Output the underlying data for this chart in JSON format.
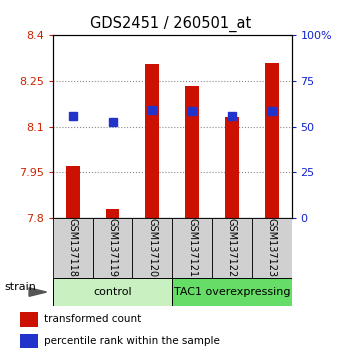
{
  "title": "GDS2451 / 260501_at",
  "samples": [
    "GSM137118",
    "GSM137119",
    "GSM137120",
    "GSM137121",
    "GSM137122",
    "GSM137123"
  ],
  "red_values": [
    7.97,
    7.83,
    8.305,
    8.235,
    8.13,
    8.31
  ],
  "blue_values": [
    8.135,
    8.115,
    8.155,
    8.15,
    8.135,
    8.15
  ],
  "red_base": 7.8,
  "ylim_left": [
    7.8,
    8.4
  ],
  "ylim_right": [
    0,
    100
  ],
  "yticks_left": [
    7.8,
    7.95,
    8.1,
    8.25,
    8.4
  ],
  "yticks_right": [
    0,
    25,
    50,
    75,
    100
  ],
  "ytick_labels_left": [
    "7.8",
    "7.95",
    "8.1",
    "8.25",
    "8.4"
  ],
  "ytick_labels_right": [
    "0",
    "25",
    "50",
    "75",
    "100%"
  ],
  "groups": [
    {
      "label": "control",
      "indices": [
        0,
        1,
        2
      ],
      "color": "#c8f0c0"
    },
    {
      "label": "TAC1 overexpressing",
      "indices": [
        3,
        4,
        5
      ],
      "color": "#66dd66"
    }
  ],
  "strain_label": "strain",
  "bar_width": 0.35,
  "blue_marker_size": 6,
  "red_color": "#cc1100",
  "blue_color": "#2233cc",
  "grid_color": "#888888",
  "bg_color": "#ffffff",
  "tick_color_left": "#cc2200",
  "tick_color_right": "#1122cc",
  "legend_red": "transformed count",
  "legend_blue": "percentile rank within the sample"
}
